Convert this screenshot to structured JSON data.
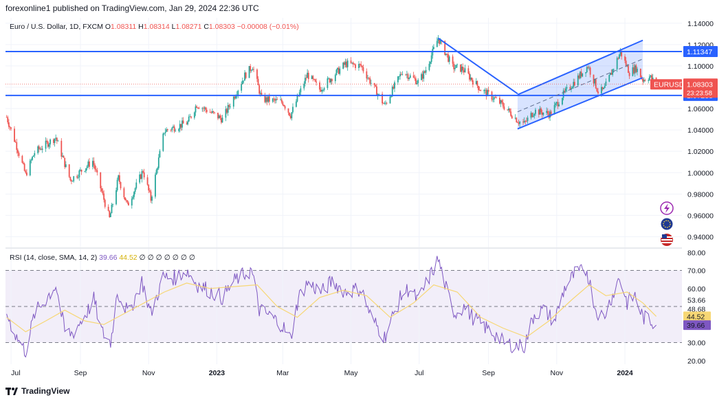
{
  "header": {
    "published": "forexonline1 published on TradingView.com, Jan 29, 2024 22:36 UTC"
  },
  "footer": {
    "brand": "TradingView"
  },
  "colors": {
    "up": "#26a69a",
    "down": "#ef5350",
    "lines": "#2962ff",
    "rsi": "#7e57c2",
    "sma": "#f7d774",
    "band": "#7e57c2"
  },
  "icons": [
    "lightning-icon",
    "eu-flag-icon",
    "us-flag-icon"
  ],
  "chart_data": [
    {
      "type": "candlestick",
      "legend": {
        "symbol": "Euro / U.S. Dollar, 1D, FXCM",
        "open_label": "O",
        "open": "1.08311",
        "high_label": "H",
        "high": "1.08314",
        "low_label": "L",
        "low": "1.08271",
        "close_label": "C",
        "close": "1.08303",
        "change": "−0.00008 (−0.01%)"
      },
      "ylim": [
        0.93,
        1.145
      ],
      "y_ticks": [
        "1.14000",
        "1.12000",
        "1.10000",
        "1.08000",
        "1.06000",
        "1.04000",
        "1.02000",
        "1.00000",
        "0.98000",
        "0.96000",
        "0.94000"
      ],
      "y_tick_values": [
        1.14,
        1.12,
        1.1,
        1.08,
        1.06,
        1.04,
        1.02,
        1.0,
        0.98,
        0.96,
        0.94
      ],
      "x_ticks": [
        "Jul",
        "Sep",
        "Nov",
        "2023",
        "Mar",
        "May",
        "Jul",
        "Sep",
        "Nov",
        "2024"
      ],
      "x_tick_dates": [
        "2022-07-01",
        "2022-09-01",
        "2022-11-01",
        "2023-01-01",
        "2023-03-01",
        "2023-05-01",
        "2023-07-01",
        "2023-09-01",
        "2023-11-01",
        "2024-01-01"
      ],
      "x_range": [
        "2022-06-26",
        "2024-02-21"
      ],
      "price_path": [
        [
          "2022-06-27",
          1.052
        ],
        [
          "2022-07-05",
          1.028
        ],
        [
          "2022-07-14",
          0.998
        ],
        [
          "2022-07-22",
          1.019
        ],
        [
          "2022-08-10",
          1.033
        ],
        [
          "2022-08-23",
          0.993
        ],
        [
          "2022-09-12",
          1.011
        ],
        [
          "2022-09-27",
          0.957
        ],
        [
          "2022-10-05",
          0.995
        ],
        [
          "2022-10-13",
          0.969
        ],
        [
          "2022-10-27",
          1.002
        ],
        [
          "2022-11-03",
          0.975
        ],
        [
          "2022-11-15",
          1.039
        ],
        [
          "2022-12-06",
          1.047
        ],
        [
          "2022-12-14",
          1.064
        ],
        [
          "2023-01-06",
          1.05
        ],
        [
          "2023-01-26",
          1.091
        ],
        [
          "2023-02-02",
          1.1
        ],
        [
          "2023-02-10",
          1.069
        ],
        [
          "2023-03-01",
          1.066
        ],
        [
          "2023-03-08",
          1.054
        ],
        [
          "2023-03-23",
          1.092
        ],
        [
          "2023-04-03",
          1.078
        ],
        [
          "2023-04-26",
          1.102
        ],
        [
          "2023-05-10",
          1.1
        ],
        [
          "2023-05-31",
          1.063
        ],
        [
          "2023-06-16",
          1.095
        ],
        [
          "2023-06-30",
          1.085
        ],
        [
          "2023-07-06",
          1.094
        ],
        [
          "2023-07-18",
          1.126
        ],
        [
          "2023-07-31",
          1.099
        ],
        [
          "2023-08-09",
          1.097
        ],
        [
          "2023-08-25",
          1.078
        ],
        [
          "2023-09-07",
          1.069
        ],
        [
          "2023-09-14",
          1.063
        ],
        [
          "2023-09-28",
          1.048
        ],
        [
          "2023-10-03",
          1.046
        ],
        [
          "2023-10-12",
          1.058
        ],
        [
          "2023-10-26",
          1.055
        ],
        [
          "2023-11-06",
          1.072
        ],
        [
          "2023-11-29",
          1.1
        ],
        [
          "2023-12-08",
          1.076
        ],
        [
          "2023-12-13",
          1.077
        ],
        [
          "2023-12-28",
          1.113
        ],
        [
          "2024-01-05",
          1.094
        ],
        [
          "2024-01-11",
          1.098
        ],
        [
          "2024-01-17",
          1.087
        ],
        [
          "2024-01-23",
          1.09
        ],
        [
          "2024-01-29",
          1.083
        ]
      ],
      "horizontal_lines": [
        {
          "value": 1.11347,
          "label": "1.11347"
        },
        {
          "value": 1.07238,
          "label": "1.07238"
        }
      ],
      "current_price": {
        "value": 1.08303,
        "symbol": "EURUSD",
        "label": "1.08303",
        "countdown": "23:23:58"
      },
      "trend_line": {
        "from": [
          "2023-07-18",
          1.126
        ],
        "to": [
          "2023-09-27",
          1.074
        ]
      },
      "channel": {
        "lower": {
          "from": [
            "2023-09-27",
            1.041
          ],
          "to": [
            "2024-01-17",
            1.089
          ]
        },
        "upper": {
          "from": [
            "2023-09-27",
            1.073
          ],
          "to": [
            "2024-01-17",
            1.124
          ]
        },
        "fill": "#2962ff"
      }
    },
    {
      "type": "line",
      "legend": {
        "title": "RSI (14, close, SMA, 14, 2)",
        "rsi_value": "39.66",
        "sma_value": "44.52",
        "extras": "∅ ∅ ∅ ∅ ∅ ∅ ∅"
      },
      "ylim": [
        18,
        82
      ],
      "y_ticks": [
        "80.00",
        "70.00",
        "60.00",
        "53.66",
        "48.68",
        "30.00",
        "20.00"
      ],
      "y_tick_values": [
        80,
        70,
        60,
        53.66,
        48.68,
        30,
        20
      ],
      "band": [
        30,
        70
      ],
      "midline": 50,
      "rsi_path": [
        [
          "2022-06-27",
          46
        ],
        [
          "2022-07-06",
          33
        ],
        [
          "2022-07-14",
          25
        ],
        [
          "2022-07-22",
          46
        ],
        [
          "2022-08-01",
          54
        ],
        [
          "2022-08-10",
          62
        ],
        [
          "2022-08-18",
          36
        ],
        [
          "2022-08-25",
          35
        ],
        [
          "2022-09-08",
          48
        ],
        [
          "2022-09-13",
          54
        ],
        [
          "2022-09-20",
          36
        ],
        [
          "2022-09-28",
          30
        ],
        [
          "2022-10-04",
          58
        ],
        [
          "2022-10-14",
          46
        ],
        [
          "2022-10-26",
          64
        ],
        [
          "2022-11-03",
          46
        ],
        [
          "2022-11-14",
          66
        ],
        [
          "2022-11-25",
          66
        ],
        [
          "2022-12-05",
          70
        ],
        [
          "2022-12-15",
          62
        ],
        [
          "2022-12-22",
          60
        ],
        [
          "2023-01-06",
          55
        ],
        [
          "2023-01-18",
          65
        ],
        [
          "2023-02-01",
          70
        ],
        [
          "2023-02-08",
          48
        ],
        [
          "2023-02-17",
          45
        ],
        [
          "2023-02-28",
          40
        ],
        [
          "2023-03-08",
          32
        ],
        [
          "2023-03-15",
          55
        ],
        [
          "2023-03-23",
          63
        ],
        [
          "2023-04-05",
          58
        ],
        [
          "2023-04-14",
          64
        ],
        [
          "2023-04-26",
          58
        ],
        [
          "2023-05-10",
          60
        ],
        [
          "2023-05-19",
          44
        ],
        [
          "2023-05-31",
          33
        ],
        [
          "2023-06-15",
          56
        ],
        [
          "2023-06-22",
          60
        ],
        [
          "2023-06-30",
          53
        ],
        [
          "2023-07-10",
          66
        ],
        [
          "2023-07-18",
          76
        ],
        [
          "2023-07-26",
          58
        ],
        [
          "2023-08-02",
          46
        ],
        [
          "2023-08-10",
          50
        ],
        [
          "2023-08-18",
          44
        ],
        [
          "2023-08-30",
          38
        ],
        [
          "2023-09-08",
          34
        ],
        [
          "2023-09-14",
          30
        ],
        [
          "2023-09-28",
          28
        ],
        [
          "2023-10-03",
          28
        ],
        [
          "2023-10-12",
          46
        ],
        [
          "2023-10-20",
          48
        ],
        [
          "2023-10-30",
          42
        ],
        [
          "2023-11-08",
          60
        ],
        [
          "2023-11-17",
          68
        ],
        [
          "2023-11-28",
          70
        ],
        [
          "2023-12-06",
          48
        ],
        [
          "2023-12-13",
          44
        ],
        [
          "2023-12-27",
          66
        ],
        [
          "2024-01-03",
          52
        ],
        [
          "2024-01-10",
          56
        ],
        [
          "2024-01-17",
          44
        ],
        [
          "2024-01-24",
          42
        ],
        [
          "2024-01-29",
          39.66
        ]
      ],
      "sma_path": [
        [
          "2022-06-27",
          44
        ],
        [
          "2022-07-14",
          36
        ],
        [
          "2022-08-01",
          42
        ],
        [
          "2022-08-18",
          48
        ],
        [
          "2022-09-05",
          42
        ],
        [
          "2022-09-22",
          40
        ],
        [
          "2022-10-10",
          46
        ],
        [
          "2022-10-28",
          52
        ],
        [
          "2022-11-15",
          58
        ],
        [
          "2022-12-05",
          63
        ],
        [
          "2022-12-26",
          60
        ],
        [
          "2023-01-16",
          61
        ],
        [
          "2023-02-06",
          62
        ],
        [
          "2023-02-24",
          50
        ],
        [
          "2023-03-14",
          44
        ],
        [
          "2023-04-03",
          55
        ],
        [
          "2023-04-24",
          59
        ],
        [
          "2023-05-15",
          56
        ],
        [
          "2023-06-05",
          44
        ],
        [
          "2023-06-26",
          52
        ],
        [
          "2023-07-14",
          62
        ],
        [
          "2023-08-04",
          58
        ],
        [
          "2023-08-25",
          44
        ],
        [
          "2023-09-14",
          38
        ],
        [
          "2023-10-05",
          33
        ],
        [
          "2023-10-25",
          42
        ],
        [
          "2023-11-15",
          54
        ],
        [
          "2023-11-30",
          62
        ],
        [
          "2023-12-15",
          56
        ],
        [
          "2024-01-03",
          58
        ],
        [
          "2024-01-17",
          52
        ],
        [
          "2024-01-29",
          44.52
        ]
      ],
      "badges": [
        {
          "value": 44.52,
          "label": "44.52",
          "color": "#f7d774"
        },
        {
          "value": 39.66,
          "label": "39.66",
          "color": "#7e57c2"
        }
      ]
    }
  ]
}
